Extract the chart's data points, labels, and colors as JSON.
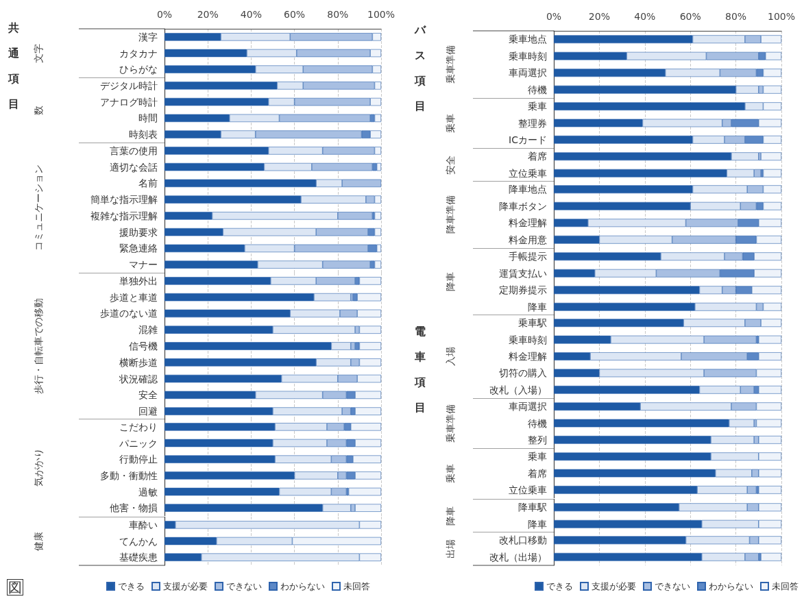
{
  "chart_data": [
    {
      "type": "bar",
      "orientation": "horizontal",
      "stacked": true,
      "ylabel": "文字",
      "annotations": [
        "共通項目"
      ],
      "xlim": [
        0,
        100
      ],
      "xticks": [
        {
          "value": 0,
          "label": "0%"
        },
        {
          "value": 20,
          "label": "20%"
        },
        {
          "value": 40,
          "label": "40%"
        },
        {
          "value": 60,
          "label": "60%"
        },
        {
          "value": 80,
          "label": "80%"
        },
        {
          "value": 100,
          "label": "100%"
        }
      ],
      "grid": "x",
      "categories": [
        "漢字",
        "カタカナ",
        "ひらがな"
      ],
      "series": [
        {
          "color": "#1e5aa5",
          "values": [
            26,
            38,
            42
          ]
        },
        {
          "color": "#dce6f4",
          "values": [
            32,
            23,
            22
          ]
        },
        {
          "color": "#a8bfe2",
          "values": [
            38,
            34,
            32
          ]
        },
        {
          "color": "#5c88c6",
          "values": [
            0,
            0,
            0
          ]
        },
        {
          "color": "#eef3fa",
          "values": [
            4,
            5,
            4
          ]
        }
      ]
    },
    {
      "type": "bar",
      "orientation": "horizontal",
      "stacked": true,
      "ylabel": "数",
      "tick_labels": "y",
      "xlim": [
        0,
        100
      ],
      "xticks": [
        {
          "value": 0,
          "label": null
        },
        {
          "value": 20,
          "label": null
        },
        {
          "value": 40,
          "label": null
        },
        {
          "value": 60,
          "label": null
        },
        {
          "value": 80,
          "label": null
        },
        {
          "value": 100,
          "label": null
        }
      ],
      "grid": "x",
      "categories": [
        "デジタル時計",
        "アナログ時計",
        "時間",
        "時刻表"
      ],
      "series": [
        {
          "color": "#1e5aa5",
          "values": [
            52,
            48,
            30,
            26
          ]
        },
        {
          "color": "#dce6f4",
          "values": [
            12,
            12,
            23,
            16
          ]
        },
        {
          "color": "#a8bfe2",
          "values": [
            33,
            35,
            42,
            49
          ]
        },
        {
          "color": "#5c88c6",
          "values": [
            0,
            0,
            2,
            4
          ]
        },
        {
          "color": "#eef3fa",
          "values": [
            3,
            5,
            3,
            5
          ]
        }
      ]
    },
    {
      "type": "bar",
      "orientation": "horizontal",
      "stacked": true,
      "ylabel": "コミュニケーション",
      "tick_labels": "y",
      "xlim": [
        0,
        100
      ],
      "xticks": [
        {
          "value": 0,
          "label": null
        },
        {
          "value": 20,
          "label": null
        },
        {
          "value": 40,
          "label": null
        },
        {
          "value": 60,
          "label": null
        },
        {
          "value": 80,
          "label": null
        },
        {
          "value": 100,
          "label": null
        }
      ],
      "grid": "x",
      "categories": [
        "言葉の使用",
        "適切な会話",
        "名前",
        "簡単な指示理解",
        "複雑な指示理解",
        "援助要求",
        "緊急連絡",
        "マナー"
      ],
      "series": [
        {
          "color": "#1e5aa5",
          "values": [
            48,
            46,
            70,
            63,
            22,
            27,
            37,
            43
          ]
        },
        {
          "color": "#dce6f4",
          "values": [
            25,
            22,
            12,
            30,
            58,
            43,
            23,
            30
          ]
        },
        {
          "color": "#a8bfe2",
          "values": [
            24,
            28,
            18,
            4,
            16,
            24,
            34,
            22
          ]
        },
        {
          "color": "#5c88c6",
          "values": [
            0,
            2,
            0,
            0,
            1,
            3,
            4,
            2
          ]
        },
        {
          "color": "#eef3fa",
          "values": [
            3,
            2,
            0,
            3,
            3,
            3,
            2,
            3
          ]
        }
      ]
    },
    {
      "type": "bar",
      "orientation": "horizontal",
      "stacked": true,
      "ylabel": "歩行・自転車での移動",
      "tick_labels": "y",
      "xlim": [
        0,
        100
      ],
      "xticks": [
        {
          "value": 0,
          "label": null
        },
        {
          "value": 20,
          "label": null
        },
        {
          "value": 40,
          "label": null
        },
        {
          "value": 60,
          "label": null
        },
        {
          "value": 80,
          "label": null
        },
        {
          "value": 100,
          "label": null
        }
      ],
      "grid": "x",
      "categories": [
        "単独外出",
        "歩道と車道",
        "歩道のない道",
        "混雑",
        "信号機",
        "横断歩道",
        "状況確認",
        "安全",
        "回避"
      ],
      "series": [
        {
          "color": "#1e5aa5",
          "values": [
            49,
            69,
            58,
            50,
            77,
            70,
            54,
            42,
            50
          ]
        },
        {
          "color": "#dce6f4",
          "values": [
            21,
            17,
            23,
            38,
            9,
            16,
            26,
            31,
            32
          ]
        },
        {
          "color": "#a8bfe2",
          "values": [
            18,
            1,
            8,
            2,
            2,
            4,
            9,
            11,
            4
          ]
        },
        {
          "color": "#5c88c6",
          "values": [
            2,
            2,
            0,
            0,
            2,
            0,
            0,
            4,
            2
          ]
        },
        {
          "color": "#eef3fa",
          "values": [
            10,
            11,
            11,
            10,
            10,
            10,
            11,
            12,
            12
          ]
        }
      ]
    },
    {
      "type": "bar",
      "orientation": "horizontal",
      "stacked": true,
      "ylabel": "気がかり",
      "tick_labels": "y",
      "xlim": [
        0,
        100
      ],
      "xticks": [
        {
          "value": 0,
          "label": null
        },
        {
          "value": 20,
          "label": null
        },
        {
          "value": 40,
          "label": null
        },
        {
          "value": 60,
          "label": null
        },
        {
          "value": 80,
          "label": null
        },
        {
          "value": 100,
          "label": null
        }
      ],
      "grid": "x",
      "categories": [
        "こだわり",
        "パニック",
        "行動停止",
        "多動・衝動性",
        "過敏",
        "他害・物損"
      ],
      "series": [
        {
          "color": "#1e5aa5",
          "values": [
            51,
            50,
            51,
            60,
            53,
            73
          ]
        },
        {
          "color": "#dce6f4",
          "values": [
            24,
            25,
            26,
            20,
            24,
            13
          ]
        },
        {
          "color": "#a8bfe2",
          "values": [
            8,
            9,
            7,
            4,
            7,
            2
          ]
        },
        {
          "color": "#5c88c6",
          "values": [
            3,
            4,
            3,
            4,
            1,
            0
          ]
        },
        {
          "color": "#eef3fa",
          "values": [
            14,
            12,
            13,
            12,
            15,
            12
          ]
        }
      ]
    },
    {
      "type": "bar",
      "orientation": "horizontal",
      "stacked": true,
      "ylabel": "健康",
      "annotations": [
        "図"
      ],
      "tick_labels": "y",
      "xlim": [
        0,
        100
      ],
      "xticks": [
        {
          "value": 0,
          "label": null
        },
        {
          "value": 20,
          "label": null
        },
        {
          "value": 40,
          "label": null
        },
        {
          "value": 60,
          "label": null
        },
        {
          "value": 80,
          "label": null
        },
        {
          "value": 100,
          "label": null
        }
      ],
      "grid": "x",
      "legend": "bottom",
      "categories": [
        "車酔い",
        "てんかん",
        "基礎疾患"
      ],
      "series": [
        {
          "name": "できる",
          "color": "#1e5aa5",
          "values": [
            5,
            24,
            17
          ]
        },
        {
          "name": "支援が必要",
          "color": "#dce6f4",
          "values": [
            85,
            35,
            73
          ]
        },
        {
          "name": "できない",
          "color": "#a8bfe2",
          "values": [
            0,
            0,
            0
          ]
        },
        {
          "name": "わからない",
          "color": "#5c88c6",
          "values": [
            0,
            0,
            0
          ]
        },
        {
          "name": "未回答",
          "color": "#eef3fa",
          "values": [
            10,
            41,
            10
          ]
        }
      ]
    },
    {
      "type": "bar",
      "orientation": "horizontal",
      "stacked": true,
      "ylabel": "乗車準備",
      "annotations": [
        "バス項目"
      ],
      "xlim": [
        0,
        100
      ],
      "xticks": [
        {
          "value": 0,
          "label": "0%"
        },
        {
          "value": 20,
          "label": "20%"
        },
        {
          "value": 40,
          "label": "40%"
        },
        {
          "value": 60,
          "label": "60%"
        },
        {
          "value": 80,
          "label": "80%"
        },
        {
          "value": 100,
          "label": "100%"
        }
      ],
      "grid": "x",
      "categories": [
        "乗車地点",
        "乗車時刻",
        "車両選択",
        "待機"
      ],
      "series": [
        {
          "color": "#1e5aa5",
          "values": [
            61,
            32,
            49,
            80
          ]
        },
        {
          "color": "#dce6f4",
          "values": [
            23,
            35,
            24,
            10
          ]
        },
        {
          "color": "#a8bfe2",
          "values": [
            7,
            23,
            16,
            2
          ]
        },
        {
          "color": "#5c88c6",
          "values": [
            0,
            3,
            3,
            0
          ]
        },
        {
          "color": "#eef3fa",
          "values": [
            9,
            7,
            8,
            8
          ]
        }
      ]
    },
    {
      "type": "bar",
      "orientation": "horizontal",
      "stacked": true,
      "ylabel": "乗車",
      "tick_labels": "y",
      "xlim": [
        0,
        100
      ],
      "xticks": [
        {
          "value": 0,
          "label": null
        },
        {
          "value": 20,
          "label": null
        },
        {
          "value": 40,
          "label": null
        },
        {
          "value": 60,
          "label": null
        },
        {
          "value": 80,
          "label": null
        },
        {
          "value": 100,
          "label": null
        }
      ],
      "grid": "x",
      "categories": [
        "乗車",
        "整理券",
        "ICカード"
      ],
      "series": [
        {
          "color": "#1e5aa5",
          "values": [
            84,
            39,
            61
          ]
        },
        {
          "color": "#dce6f4",
          "values": [
            8,
            35,
            14
          ]
        },
        {
          "color": "#a8bfe2",
          "values": [
            0,
            4,
            9
          ]
        },
        {
          "color": "#5c88c6",
          "values": [
            0,
            12,
            8
          ]
        },
        {
          "color": "#eef3fa",
          "values": [
            8,
            10,
            8
          ]
        }
      ]
    },
    {
      "type": "bar",
      "orientation": "horizontal",
      "stacked": true,
      "ylabel": "安全",
      "tick_labels": "y",
      "xlim": [
        0,
        100
      ],
      "xticks": [
        {
          "value": 0,
          "label": null
        },
        {
          "value": 20,
          "label": null
        },
        {
          "value": 40,
          "label": null
        },
        {
          "value": 60,
          "label": null
        },
        {
          "value": 80,
          "label": null
        },
        {
          "value": 100,
          "label": null
        }
      ],
      "grid": "x",
      "categories": [
        "着席",
        "立位乗車"
      ],
      "series": [
        {
          "color": "#1e5aa5",
          "values": [
            78,
            76
          ]
        },
        {
          "color": "#dce6f4",
          "values": [
            12,
            12
          ]
        },
        {
          "color": "#a8bfe2",
          "values": [
            1,
            3
          ]
        },
        {
          "color": "#5c88c6",
          "values": [
            0,
            1
          ]
        },
        {
          "color": "#eef3fa",
          "values": [
            9,
            8
          ]
        }
      ]
    },
    {
      "type": "bar",
      "orientation": "horizontal",
      "stacked": true,
      "ylabel": "降車準備",
      "tick_labels": "y",
      "xlim": [
        0,
        100
      ],
      "xticks": [
        {
          "value": 0,
          "label": null
        },
        {
          "value": 20,
          "label": null
        },
        {
          "value": 40,
          "label": null
        },
        {
          "value": 60,
          "label": null
        },
        {
          "value": 80,
          "label": null
        },
        {
          "value": 100,
          "label": null
        }
      ],
      "grid": "x",
      "categories": [
        "降車地点",
        "降車ボタン",
        "料金理解",
        "料金用意"
      ],
      "series": [
        {
          "color": "#1e5aa5",
          "values": [
            61,
            60,
            15,
            20
          ]
        },
        {
          "color": "#dce6f4",
          "values": [
            24,
            22,
            43,
            32
          ]
        },
        {
          "color": "#a8bfe2",
          "values": [
            7,
            7,
            23,
            28
          ]
        },
        {
          "color": "#5c88c6",
          "values": [
            0,
            3,
            9,
            9
          ]
        },
        {
          "color": "#eef3fa",
          "values": [
            8,
            8,
            10,
            11
          ]
        }
      ]
    },
    {
      "type": "bar",
      "orientation": "horizontal",
      "stacked": true,
      "ylabel": "降車",
      "tick_labels": "y",
      "xlim": [
        0,
        100
      ],
      "xticks": [
        {
          "value": 0,
          "label": null
        },
        {
          "value": 20,
          "label": null
        },
        {
          "value": 40,
          "label": null
        },
        {
          "value": 60,
          "label": null
        },
        {
          "value": 80,
          "label": null
        },
        {
          "value": 100,
          "label": null
        }
      ],
      "grid": "x",
      "categories": [
        "手帳提示",
        "運賃支払い",
        "定期券提示",
        "降車"
      ],
      "series": [
        {
          "color": "#1e5aa5",
          "values": [
            47,
            18,
            64,
            62
          ]
        },
        {
          "color": "#dce6f4",
          "values": [
            28,
            27,
            10,
            27
          ]
        },
        {
          "color": "#a8bfe2",
          "values": [
            8,
            28,
            6,
            3
          ]
        },
        {
          "color": "#5c88c6",
          "values": [
            5,
            15,
            7,
            0
          ]
        },
        {
          "color": "#eef3fa",
          "values": [
            12,
            12,
            13,
            8
          ]
        }
      ]
    },
    {
      "type": "bar",
      "orientation": "horizontal",
      "stacked": true,
      "ylabel": "入場",
      "annotations": [
        "電車項目"
      ],
      "tick_labels": "y",
      "xlim": [
        0,
        100
      ],
      "xticks": [
        {
          "value": 0,
          "label": null
        },
        {
          "value": 20,
          "label": null
        },
        {
          "value": 40,
          "label": null
        },
        {
          "value": 60,
          "label": null
        },
        {
          "value": 80,
          "label": null
        },
        {
          "value": 100,
          "label": null
        }
      ],
      "grid": "x",
      "categories": [
        "乗車駅",
        "乗車時刻",
        "料金理解",
        "切符の購入",
        "改札（入場）"
      ],
      "series": [
        {
          "color": "#1e5aa5",
          "values": [
            57,
            25,
            16,
            20,
            64
          ]
        },
        {
          "color": "#dce6f4",
          "values": [
            27,
            41,
            40,
            46,
            18
          ]
        },
        {
          "color": "#a8bfe2",
          "values": [
            7,
            23,
            29,
            23,
            6
          ]
        },
        {
          "color": "#5c88c6",
          "values": [
            0,
            1,
            5,
            0,
            2
          ]
        },
        {
          "color": "#eef3fa",
          "values": [
            9,
            10,
            10,
            11,
            10
          ]
        }
      ]
    },
    {
      "type": "bar",
      "orientation": "horizontal",
      "stacked": true,
      "ylabel": "乗車準備",
      "tick_labels": "y",
      "xlim": [
        0,
        100
      ],
      "xticks": [
        {
          "value": 0,
          "label": null
        },
        {
          "value": 20,
          "label": null
        },
        {
          "value": 40,
          "label": null
        },
        {
          "value": 60,
          "label": null
        },
        {
          "value": 80,
          "label": null
        },
        {
          "value": 100,
          "label": null
        }
      ],
      "grid": "x",
      "categories": [
        "車両選択",
        "待機",
        "整列"
      ],
      "series": [
        {
          "color": "#1e5aa5",
          "values": [
            38,
            77,
            69
          ]
        },
        {
          "color": "#dce6f4",
          "values": [
            40,
            11,
            19
          ]
        },
        {
          "color": "#a8bfe2",
          "values": [
            11,
            1,
            2
          ]
        },
        {
          "color": "#5c88c6",
          "values": [
            0,
            0,
            0
          ]
        },
        {
          "color": "#eef3fa",
          "values": [
            11,
            11,
            10
          ]
        }
      ]
    },
    {
      "type": "bar",
      "orientation": "horizontal",
      "stacked": true,
      "ylabel": "乗車",
      "tick_labels": "y",
      "xlim": [
        0,
        100
      ],
      "xticks": [
        {
          "value": 0,
          "label": null
        },
        {
          "value": 20,
          "label": null
        },
        {
          "value": 40,
          "label": null
        },
        {
          "value": 60,
          "label": null
        },
        {
          "value": 80,
          "label": null
        },
        {
          "value": 100,
          "label": null
        }
      ],
      "grid": "x",
      "categories": [
        "乗車",
        "着席",
        "立位乗車"
      ],
      "series": [
        {
          "color": "#1e5aa5",
          "values": [
            69,
            71,
            63
          ]
        },
        {
          "color": "#dce6f4",
          "values": [
            21,
            16,
            22
          ]
        },
        {
          "color": "#a8bfe2",
          "values": [
            0,
            3,
            4
          ]
        },
        {
          "color": "#5c88c6",
          "values": [
            0,
            0,
            1
          ]
        },
        {
          "color": "#eef3fa",
          "values": [
            10,
            10,
            10
          ]
        }
      ]
    },
    {
      "type": "bar",
      "orientation": "horizontal",
      "stacked": true,
      "ylabel": "降車",
      "tick_labels": "y",
      "xlim": [
        0,
        100
      ],
      "xticks": [
        {
          "value": 0,
          "label": null
        },
        {
          "value": 20,
          "label": null
        },
        {
          "value": 40,
          "label": null
        },
        {
          "value": 60,
          "label": null
        },
        {
          "value": 80,
          "label": null
        },
        {
          "value": 100,
          "label": null
        }
      ],
      "grid": "x",
      "categories": [
        "降車駅",
        "降車"
      ],
      "series": [
        {
          "color": "#1e5aa5",
          "values": [
            55,
            65
          ]
        },
        {
          "color": "#dce6f4",
          "values": [
            30,
            25
          ]
        },
        {
          "color": "#a8bfe2",
          "values": [
            5,
            0
          ]
        },
        {
          "color": "#5c88c6",
          "values": [
            0,
            0
          ]
        },
        {
          "color": "#eef3fa",
          "values": [
            10,
            10
          ]
        }
      ]
    },
    {
      "type": "bar",
      "orientation": "horizontal",
      "stacked": true,
      "ylabel": "出場",
      "tick_labels": "y",
      "xlim": [
        0,
        100
      ],
      "xticks": [
        {
          "value": 0,
          "label": null
        },
        {
          "value": 20,
          "label": null
        },
        {
          "value": 40,
          "label": null
        },
        {
          "value": 60,
          "label": null
        },
        {
          "value": 80,
          "label": null
        },
        {
          "value": 100,
          "label": null
        }
      ],
      "grid": "x",
      "legend": "bottom",
      "categories": [
        "改札口移動",
        "改札（出場）"
      ],
      "series": [
        {
          "name": "できる",
          "color": "#1e5aa5",
          "values": [
            58,
            65
          ]
        },
        {
          "name": "支援が必要",
          "color": "#dce6f4",
          "values": [
            28,
            19
          ]
        },
        {
          "name": "できない",
          "color": "#a8bfe2",
          "values": [
            4,
            6
          ]
        },
        {
          "name": "わからない",
          "color": "#5c88c6",
          "values": [
            0,
            1
          ]
        },
        {
          "name": "未回答",
          "color": "#eef3fa",
          "values": [
            10,
            9
          ]
        }
      ]
    }
  ]
}
